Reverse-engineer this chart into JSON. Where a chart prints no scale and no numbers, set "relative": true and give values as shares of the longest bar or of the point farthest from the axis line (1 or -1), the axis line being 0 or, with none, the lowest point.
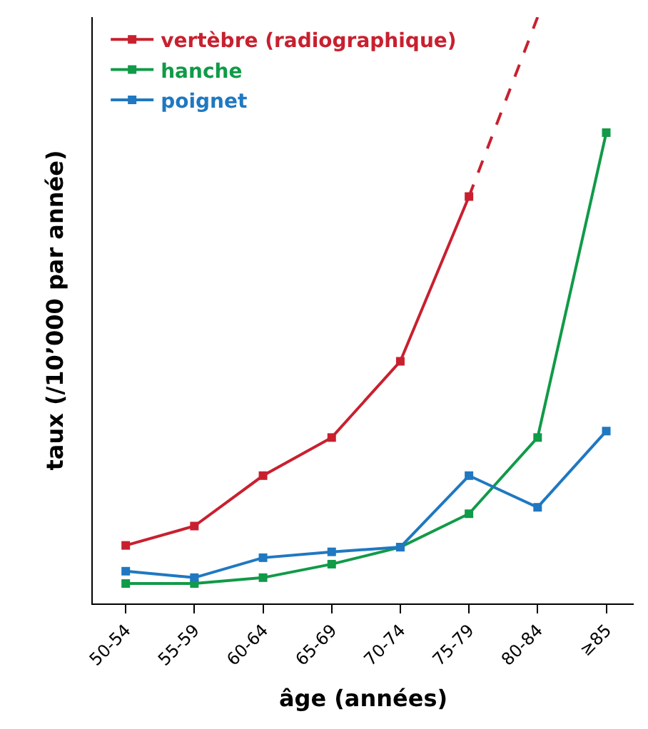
{
  "chart_data": {
    "type": "line",
    "relative": true,
    "xlabel": "âge (années)",
    "ylabel": "taux (/10’000 par année)",
    "categories": [
      "50-54",
      "55-59",
      "60-64",
      "65-69",
      "70-74",
      "75-79",
      "80-84",
      "≥85"
    ],
    "marker": "square",
    "line_style": "solid",
    "legend": "top left",
    "tick_labels": "x",
    "series": [
      {
        "name": "vertèbre (radiographique)",
        "color": "#c8202f",
        "values": [
          0.099,
          0.132,
          0.218,
          0.283,
          0.413,
          0.694,
          null,
          null
        ]
      },
      {
        "name": "hanche",
        "color": "#119a48",
        "values": [
          0.034,
          0.034,
          0.044,
          0.067,
          0.096,
          0.153,
          0.283,
          0.803
        ]
      },
      {
        "name": "poignet",
        "color": "#1f78c1",
        "values": [
          0.055,
          0.044,
          0.078,
          0.088,
          0.096,
          0.218,
          0.164,
          0.294
        ]
      },
      {
        "color": "#c8202f",
        "values": [
          null,
          null,
          null,
          null,
          null,
          0.694,
          1,
          null
        ],
        "line_style": "dashed",
        "marker": "none"
      }
    ]
  }
}
